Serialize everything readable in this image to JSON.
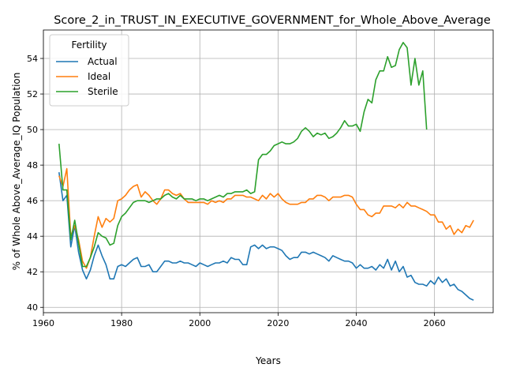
{
  "chart_data": {
    "type": "line",
    "title": "Score_2_in_TRUST_IN_EXECUTIVE_GOVERNMENT_for_Whole_Above_Average",
    "xlabel": "Years",
    "ylabel": "% of Whole Above_Average_IQ Population",
    "xlim": [
      1960,
      2075
    ],
    "ylim": [
      39.7,
      55.6
    ],
    "xticks": [
      1960,
      1980,
      2000,
      2020,
      2040,
      2060
    ],
    "yticks": [
      40,
      42,
      44,
      46,
      48,
      50,
      52,
      54
    ],
    "grid": true,
    "legend": {
      "title": "Fertility",
      "placement": "top-left"
    },
    "series": [
      {
        "name": "Actual",
        "color": "#1f77b4",
        "points": [
          [
            1964,
            47.6
          ],
          [
            1965,
            46.0
          ],
          [
            1966,
            46.3
          ],
          [
            1967,
            43.4
          ],
          [
            1968,
            44.6
          ],
          [
            1969,
            43.1
          ],
          [
            1970,
            42.1
          ],
          [
            1971,
            41.6
          ],
          [
            1972,
            42.1
          ],
          [
            1973,
            42.9
          ],
          [
            1974,
            43.5
          ],
          [
            1975,
            42.9
          ],
          [
            1976,
            42.4
          ],
          [
            1977,
            41.6
          ],
          [
            1978,
            41.6
          ],
          [
            1979,
            42.3
          ],
          [
            1980,
            42.4
          ],
          [
            1981,
            42.3
          ],
          [
            1982,
            42.5
          ],
          [
            1983,
            42.7
          ],
          [
            1984,
            42.8
          ],
          [
            1985,
            42.3
          ],
          [
            1986,
            42.3
          ],
          [
            1987,
            42.4
          ],
          [
            1988,
            42.0
          ],
          [
            1989,
            42.0
          ],
          [
            1990,
            42.3
          ],
          [
            1991,
            42.6
          ],
          [
            1992,
            42.6
          ],
          [
            1993,
            42.5
          ],
          [
            1994,
            42.5
          ],
          [
            1995,
            42.6
          ],
          [
            1996,
            42.5
          ],
          [
            1997,
            42.5
          ],
          [
            1998,
            42.4
          ],
          [
            1999,
            42.3
          ],
          [
            2000,
            42.5
          ],
          [
            2001,
            42.4
          ],
          [
            2002,
            42.3
          ],
          [
            2003,
            42.4
          ],
          [
            2004,
            42.5
          ],
          [
            2005,
            42.5
          ],
          [
            2006,
            42.6
          ],
          [
            2007,
            42.5
          ],
          [
            2008,
            42.8
          ],
          [
            2009,
            42.7
          ],
          [
            2010,
            42.7
          ],
          [
            2011,
            42.4
          ],
          [
            2012,
            42.4
          ],
          [
            2013,
            43.4
          ],
          [
            2014,
            43.5
          ],
          [
            2015,
            43.3
          ],
          [
            2016,
            43.5
          ],
          [
            2017,
            43.3
          ],
          [
            2018,
            43.4
          ],
          [
            2019,
            43.4
          ],
          [
            2020,
            43.3
          ],
          [
            2021,
            43.2
          ],
          [
            2022,
            42.9
          ],
          [
            2023,
            42.7
          ],
          [
            2024,
            42.8
          ],
          [
            2025,
            42.8
          ],
          [
            2026,
            43.1
          ],
          [
            2027,
            43.1
          ],
          [
            2028,
            43.0
          ],
          [
            2029,
            43.1
          ],
          [
            2030,
            43.0
          ],
          [
            2031,
            42.9
          ],
          [
            2032,
            42.8
          ],
          [
            2033,
            42.6
          ],
          [
            2034,
            42.9
          ],
          [
            2035,
            42.8
          ],
          [
            2036,
            42.7
          ],
          [
            2037,
            42.6
          ],
          [
            2038,
            42.6
          ],
          [
            2039,
            42.5
          ],
          [
            2040,
            42.2
          ],
          [
            2041,
            42.4
          ],
          [
            2042,
            42.2
          ],
          [
            2043,
            42.2
          ],
          [
            2044,
            42.3
          ],
          [
            2045,
            42.1
          ],
          [
            2046,
            42.4
          ],
          [
            2047,
            42.2
          ],
          [
            2048,
            42.7
          ],
          [
            2049,
            42.1
          ],
          [
            2050,
            42.6
          ],
          [
            2051,
            42.0
          ],
          [
            2052,
            42.3
          ],
          [
            2053,
            41.7
          ],
          [
            2054,
            41.8
          ],
          [
            2055,
            41.4
          ],
          [
            2056,
            41.3
          ],
          [
            2057,
            41.3
          ],
          [
            2058,
            41.2
          ],
          [
            2059,
            41.5
          ],
          [
            2060,
            41.3
          ],
          [
            2061,
            41.7
          ],
          [
            2062,
            41.4
          ],
          [
            2063,
            41.6
          ],
          [
            2064,
            41.2
          ],
          [
            2065,
            41.3
          ],
          [
            2066,
            41.0
          ],
          [
            2067,
            40.9
          ],
          [
            2068,
            40.7
          ],
          [
            2069,
            40.5
          ],
          [
            2070,
            40.4
          ]
        ]
      },
      {
        "name": "Ideal",
        "color": "#ff7f0e",
        "points": [
          [
            1964,
            47.4
          ],
          [
            1965,
            46.8
          ],
          [
            1966,
            47.8
          ],
          [
            1967,
            44.0
          ],
          [
            1968,
            44.6
          ],
          [
            1969,
            43.8
          ],
          [
            1970,
            42.6
          ],
          [
            1971,
            42.2
          ],
          [
            1972,
            42.8
          ],
          [
            1973,
            44.0
          ],
          [
            1974,
            45.1
          ],
          [
            1975,
            44.5
          ],
          [
            1976,
            45.0
          ],
          [
            1977,
            44.8
          ],
          [
            1978,
            45.0
          ],
          [
            1979,
            46.0
          ],
          [
            1980,
            46.1
          ],
          [
            1981,
            46.3
          ],
          [
            1982,
            46.6
          ],
          [
            1983,
            46.8
          ],
          [
            1984,
            46.9
          ],
          [
            1985,
            46.2
          ],
          [
            1986,
            46.5
          ],
          [
            1987,
            46.3
          ],
          [
            1988,
            46.0
          ],
          [
            1989,
            45.8
          ],
          [
            1990,
            46.1
          ],
          [
            1991,
            46.6
          ],
          [
            1992,
            46.6
          ],
          [
            1993,
            46.4
          ],
          [
            1994,
            46.3
          ],
          [
            1995,
            46.4
          ],
          [
            1996,
            46.1
          ],
          [
            1997,
            45.9
          ],
          [
            1998,
            45.9
          ],
          [
            1999,
            45.9
          ],
          [
            2000,
            45.9
          ],
          [
            2001,
            45.9
          ],
          [
            2002,
            45.8
          ],
          [
            2003,
            46.0
          ],
          [
            2004,
            45.9
          ],
          [
            2005,
            46.0
          ],
          [
            2006,
            45.9
          ],
          [
            2007,
            46.1
          ],
          [
            2008,
            46.1
          ],
          [
            2009,
            46.3
          ],
          [
            2010,
            46.3
          ],
          [
            2011,
            46.3
          ],
          [
            2012,
            46.2
          ],
          [
            2013,
            46.2
          ],
          [
            2014,
            46.1
          ],
          [
            2015,
            46.0
          ],
          [
            2016,
            46.3
          ],
          [
            2017,
            46.1
          ],
          [
            2018,
            46.4
          ],
          [
            2019,
            46.2
          ],
          [
            2020,
            46.4
          ],
          [
            2021,
            46.1
          ],
          [
            2022,
            45.9
          ],
          [
            2023,
            45.8
          ],
          [
            2024,
            45.8
          ],
          [
            2025,
            45.8
          ],
          [
            2026,
            45.9
          ],
          [
            2027,
            45.9
          ],
          [
            2028,
            46.1
          ],
          [
            2029,
            46.1
          ],
          [
            2030,
            46.3
          ],
          [
            2031,
            46.3
          ],
          [
            2032,
            46.2
          ],
          [
            2033,
            46.0
          ],
          [
            2034,
            46.2
          ],
          [
            2035,
            46.2
          ],
          [
            2036,
            46.2
          ],
          [
            2037,
            46.3
          ],
          [
            2038,
            46.3
          ],
          [
            2039,
            46.2
          ],
          [
            2040,
            45.8
          ],
          [
            2041,
            45.5
          ],
          [
            2042,
            45.5
          ],
          [
            2043,
            45.2
          ],
          [
            2044,
            45.1
          ],
          [
            2045,
            45.3
          ],
          [
            2046,
            45.3
          ],
          [
            2047,
            45.7
          ],
          [
            2048,
            45.7
          ],
          [
            2049,
            45.7
          ],
          [
            2050,
            45.6
          ],
          [
            2051,
            45.8
          ],
          [
            2052,
            45.6
          ],
          [
            2053,
            45.9
          ],
          [
            2054,
            45.7
          ],
          [
            2055,
            45.7
          ],
          [
            2056,
            45.6
          ],
          [
            2057,
            45.5
          ],
          [
            2058,
            45.4
          ],
          [
            2059,
            45.2
          ],
          [
            2060,
            45.2
          ],
          [
            2061,
            44.8
          ],
          [
            2062,
            44.8
          ],
          [
            2063,
            44.4
          ],
          [
            2064,
            44.6
          ],
          [
            2065,
            44.1
          ],
          [
            2066,
            44.4
          ],
          [
            2067,
            44.2
          ],
          [
            2068,
            44.6
          ],
          [
            2069,
            44.5
          ],
          [
            2070,
            44.9
          ]
        ]
      },
      {
        "name": "Sterile",
        "color": "#2ca02c",
        "points": [
          [
            1964,
            49.2
          ],
          [
            1965,
            46.6
          ],
          [
            1966,
            46.6
          ],
          [
            1967,
            43.8
          ],
          [
            1968,
            44.9
          ],
          [
            1969,
            43.6
          ],
          [
            1970,
            42.3
          ],
          [
            1971,
            42.3
          ],
          [
            1972,
            42.8
          ],
          [
            1973,
            43.4
          ],
          [
            1974,
            44.2
          ],
          [
            1975,
            44.0
          ],
          [
            1976,
            43.9
          ],
          [
            1977,
            43.5
          ],
          [
            1978,
            43.6
          ],
          [
            1979,
            44.6
          ],
          [
            1980,
            45.1
          ],
          [
            1981,
            45.3
          ],
          [
            1982,
            45.6
          ],
          [
            1983,
            45.9
          ],
          [
            1984,
            46.0
          ],
          [
            1985,
            46.0
          ],
          [
            1986,
            46.0
          ],
          [
            1987,
            45.9
          ],
          [
            1988,
            46.0
          ],
          [
            1989,
            46.1
          ],
          [
            1990,
            46.1
          ],
          [
            1991,
            46.3
          ],
          [
            1992,
            46.4
          ],
          [
            1993,
            46.2
          ],
          [
            1994,
            46.1
          ],
          [
            1995,
            46.3
          ],
          [
            1996,
            46.1
          ],
          [
            1997,
            46.1
          ],
          [
            1998,
            46.1
          ],
          [
            1999,
            46.0
          ],
          [
            2000,
            46.1
          ],
          [
            2001,
            46.1
          ],
          [
            2002,
            46.0
          ],
          [
            2003,
            46.1
          ],
          [
            2004,
            46.2
          ],
          [
            2005,
            46.3
          ],
          [
            2006,
            46.2
          ],
          [
            2007,
            46.4
          ],
          [
            2008,
            46.4
          ],
          [
            2009,
            46.5
          ],
          [
            2010,
            46.5
          ],
          [
            2011,
            46.5
          ],
          [
            2012,
            46.6
          ],
          [
            2013,
            46.4
          ],
          [
            2014,
            46.5
          ],
          [
            2015,
            48.3
          ],
          [
            2016,
            48.6
          ],
          [
            2017,
            48.6
          ],
          [
            2018,
            48.8
          ],
          [
            2019,
            49.1
          ],
          [
            2020,
            49.2
          ],
          [
            2021,
            49.3
          ],
          [
            2022,
            49.2
          ],
          [
            2023,
            49.2
          ],
          [
            2024,
            49.3
          ],
          [
            2025,
            49.5
          ],
          [
            2026,
            49.9
          ],
          [
            2027,
            50.1
          ],
          [
            2028,
            49.9
          ],
          [
            2029,
            49.6
          ],
          [
            2030,
            49.8
          ],
          [
            2031,
            49.7
          ],
          [
            2032,
            49.8
          ],
          [
            2033,
            49.5
          ],
          [
            2034,
            49.6
          ],
          [
            2035,
            49.8
          ],
          [
            2036,
            50.1
          ],
          [
            2037,
            50.5
          ],
          [
            2038,
            50.2
          ],
          [
            2039,
            50.2
          ],
          [
            2040,
            50.3
          ],
          [
            2041,
            49.9
          ],
          [
            2042,
            51.0
          ],
          [
            2043,
            51.7
          ],
          [
            2044,
            51.5
          ],
          [
            2045,
            52.8
          ],
          [
            2046,
            53.3
          ],
          [
            2047,
            53.3
          ],
          [
            2048,
            54.1
          ],
          [
            2049,
            53.5
          ],
          [
            2050,
            53.6
          ],
          [
            2051,
            54.5
          ],
          [
            2052,
            54.9
          ],
          [
            2053,
            54.6
          ],
          [
            2054,
            52.5
          ],
          [
            2055,
            54.0
          ],
          [
            2056,
            52.5
          ],
          [
            2057,
            53.3
          ],
          [
            2058,
            50.0
          ]
        ]
      }
    ]
  }
}
